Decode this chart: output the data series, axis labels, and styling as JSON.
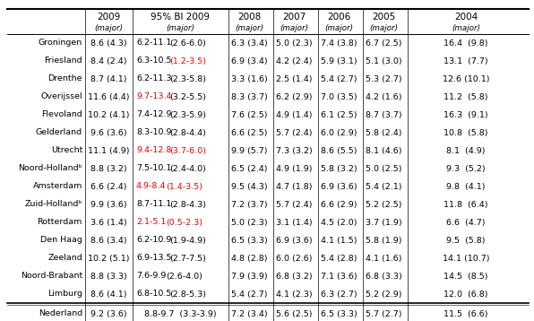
{
  "col_headers": [
    "2009",
    "95% BI 2009",
    "2008",
    "2007",
    "2006",
    "2005",
    "2004"
  ],
  "col_subheaders": [
    "(major)",
    "(major)",
    "(major)",
    "(major)",
    "(major)",
    "(major)",
    "(major)"
  ],
  "rows": [
    {
      "region": "Groningen",
      "y09": "8.6 (4.3)",
      "bi_black1": "6.2-11.1",
      "bi_red1": "",
      "bi_black2": "(2.6-6.0)",
      "bi_red2": "",
      "y08": "6.3 (3.4)",
      "y07": "5.0 (2.3)",
      "y06": "7.4 (3.8)",
      "y05": "6.7 (2.5)",
      "y04": "16.4  (9.8)"
    },
    {
      "region": "Friesland",
      "y09": "8.4 (2.4)",
      "bi_black1": "6.3-10.5",
      "bi_red1": "",
      "bi_black2": "",
      "bi_red2": "(1.2-3.5)",
      "y08": "6.9 (3.4)",
      "y07": "4.2 (2.4)",
      "y06": "5.9 (3.1)",
      "y05": "5.1 (3.0)",
      "y04": "13.1  (7.7)"
    },
    {
      "region": "Drenthe",
      "y09": "8.7 (4.1)",
      "bi_black1": "6.2-11.3",
      "bi_red1": "",
      "bi_black2": "(2.3-5.8)",
      "bi_red2": "",
      "y08": "3.3 (1.6)",
      "y07": "2.5 (1.4)",
      "y06": "5.4 (2.7)",
      "y05": "5.3 (2.7)",
      "y04": "12.6 (10.1)"
    },
    {
      "region": "Overijssel",
      "y09": "11.6 (4.4)",
      "bi_black1": "",
      "bi_red1": "9.7-13.4",
      "bi_black2": "(3.2-5.5)",
      "bi_red2": "",
      "y08": "8.3 (3.7)",
      "y07": "6.2 (2.9)",
      "y06": "7.0 (3.5)",
      "y05": "4.2 (1.6)",
      "y04": "11.2  (5.8)"
    },
    {
      "region": "Flevoland",
      "y09": "10.2 (4.1)",
      "bi_black1": "7.4-12.9",
      "bi_red1": "",
      "bi_black2": "(2.3-5.9)",
      "bi_red2": "",
      "y08": "7.6 (2.5)",
      "y07": "4.9 (1.4)",
      "y06": "6.1 (2.5)",
      "y05": "8.7 (3.7)",
      "y04": "16.3  (9.1)"
    },
    {
      "region": "Gelderland",
      "y09": "9.6 (3.6)",
      "bi_black1": "8.3-10.9",
      "bi_red1": "",
      "bi_black2": "(2.8-4.4)",
      "bi_red2": "",
      "y08": "6.6 (2.5)",
      "y07": "5.7 (2.4)",
      "y06": "6.0 (2.9)",
      "y05": "5.8 (2.4)",
      "y04": "10.8  (5.8)"
    },
    {
      "region": "Utrecht",
      "y09": "11.1 (4.9)",
      "bi_black1": "",
      "bi_red1": "9.4-12.8",
      "bi_black2": "",
      "bi_red2": "(3.7-6.0)",
      "y08": "9.9 (5.7)",
      "y07": "7.3 (3.2)",
      "y06": "8.6 (5.5)",
      "y05": "8.1 (4.6)",
      "y04": "8.1  (4.9)"
    },
    {
      "region": "Noord-Hollandᵇ",
      "y09": "8.8 (3.2)",
      "bi_black1": "7.5-10.1",
      "bi_red1": "",
      "bi_black2": "(2.4-4.0)",
      "bi_red2": "",
      "y08": "6.5 (2.4)",
      "y07": "4.9 (1.9)",
      "y06": "5.8 (3.2)",
      "y05": "5.0 (2.5)",
      "y04": "9.3  (5.2)"
    },
    {
      "region": "Amsterdam",
      "y09": "6.6 (2.4)",
      "bi_black1": "",
      "bi_red1": "4.9-8.4",
      "bi_black2": "",
      "bi_red2": "(1.4-3.5)",
      "y08": "9.5 (4.3)",
      "y07": "4.7 (1.8)",
      "y06": "6.9 (3.6)",
      "y05": "5.4 (2.1)",
      "y04": "9.8  (4.1)"
    },
    {
      "region": "Zuid-Hollandᵇ",
      "y09": "9.9 (3.6)",
      "bi_black1": "8.7-11.1",
      "bi_red1": "",
      "bi_black2": "(2.8-4.3)",
      "bi_red2": "",
      "y08": "7.2 (3.7)",
      "y07": "5.7 (2.4)",
      "y06": "6.6 (2.9)",
      "y05": "5.2 (2.5)",
      "y04": "11.8  (6.4)"
    },
    {
      "region": "Rotterdam",
      "y09": "3.6 (1.4)",
      "bi_black1": "",
      "bi_red1": "2.1-5.1",
      "bi_black2": "",
      "bi_red2": "(0.5-2.3)",
      "y08": "5.0 (2.3)",
      "y07": "3.1 (1.4)",
      "y06": "4.5 (2.0)",
      "y05": "3.7 (1.9)",
      "y04": "6.6  (4.7)"
    },
    {
      "region": "Den Haag",
      "y09": "8.6 (3.4)",
      "bi_black1": "6.2-10.9",
      "bi_red1": "",
      "bi_black2": "(1.9-4.9)",
      "bi_red2": "",
      "y08": "6.5 (3.3)",
      "y07": "6.9 (3.6)",
      "y06": "4.1 (1.5)",
      "y05": "5.8 (1.9)",
      "y04": "9.5  (5.8)"
    },
    {
      "region": "Zeeland",
      "y09": "10.2 (5.1)",
      "bi_black1": "6.9-13.5",
      "bi_red1": "",
      "bi_black2": "(2.7-7.5)",
      "bi_red2": "",
      "y08": "4.8 (2.8)",
      "y07": "6.0 (2.6)",
      "y06": "5.4 (2.8)",
      "y05": "4.1 (1.6)",
      "y04": "14.1 (10.7)"
    },
    {
      "region": "Noord-Brabant",
      "y09": "8.8 (3.3)",
      "bi_black1": "7.6-9.9",
      "bi_red1": "",
      "bi_black2": "(2.6-4.0)",
      "bi_red2": "",
      "y08": "7.9 (3.9)",
      "y07": "6.8 (3.2)",
      "y06": "7.1 (3.6)",
      "y05": "6.8 (3.3)",
      "y04": "14.5  (8.5)"
    },
    {
      "region": "Limburg",
      "y09": "8.6 (4.1)",
      "bi_black1": "6.8-10.5",
      "bi_red1": "",
      "bi_black2": "(2.8-5.3)",
      "bi_red2": "",
      "y08": "5.4 (2.7)",
      "y07": "4.1 (2.3)",
      "y06": "6.3 (2.7)",
      "y05": "5.2 (2.9)",
      "y04": "12.0  (6.8)"
    }
  ],
  "footer": {
    "region": "Nederland",
    "y09": "9.2 (3.6)",
    "bi": "8.8-9.7  (3.3-3.9)",
    "y08": "7.2 (3.4)",
    "y07": "5.6 (2.5)",
    "y06": "6.5 (3.3)",
    "y05": "5.7 (2.7)",
    "y04": "11.5  (6.6)"
  },
  "red_color": "#EE0000",
  "black_color": "#000000",
  "bg_color": "#FFFFFF",
  "font_size": 6.8,
  "header_font_size": 7.5
}
